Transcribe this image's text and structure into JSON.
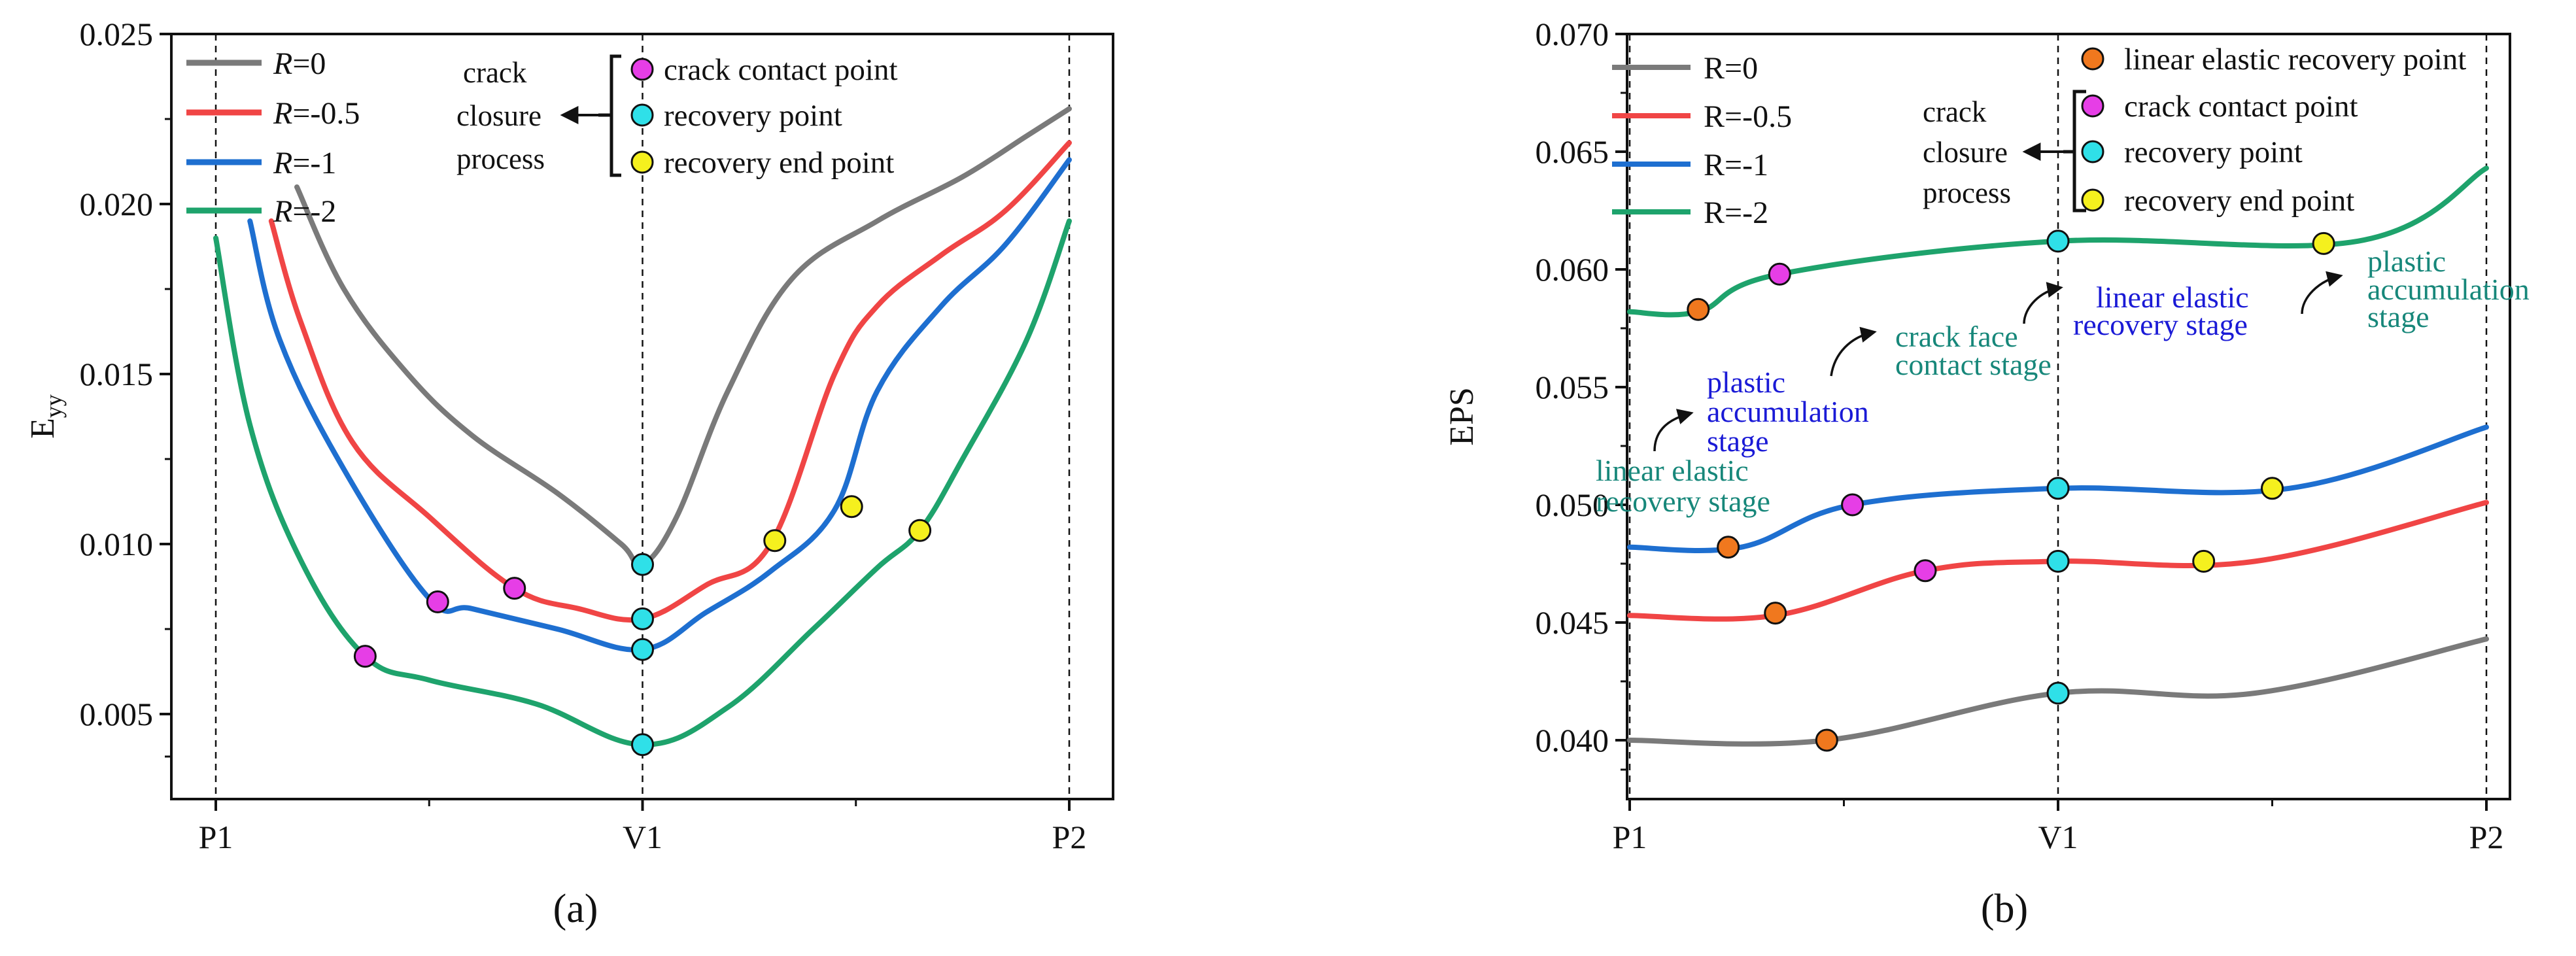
{
  "colors": {
    "R0": "#7a7a7a",
    "R-0.5": "#f04545",
    "R-1": "#1e6fd0",
    "R-2": "#1ea36c",
    "contact": "#e63ee6",
    "recovery": "#2fe0e8",
    "end": "#f5f01e",
    "linear": "#f0781e",
    "stage_blue": "#1a1ad6",
    "stage_teal": "#17877a"
  },
  "chart_data": [
    {
      "type": "line",
      "panel_label": "(a)",
      "ylabel": "E",
      "ylabel_sub": "yy",
      "x_ticks": [
        "P1",
        "V1",
        "P2"
      ],
      "xlim": [
        0,
        2
      ],
      "ylim": [
        0.0025,
        0.025
      ],
      "y_ticks": [
        0.005,
        0.01,
        0.015,
        0.02,
        0.025
      ],
      "y_tick_labels": [
        "0.005",
        "0.010",
        "0.015",
        "0.020",
        "0.025"
      ],
      "legend": [
        {
          "prefix": "R",
          "suffix": "=0",
          "key": "R0"
        },
        {
          "prefix": "R",
          "suffix": "=-0.5",
          "key": "R-0.5"
        },
        {
          "prefix": "R",
          "suffix": "=-1",
          "key": "R-1"
        },
        {
          "prefix": "R",
          "suffix": "=-2",
          "key": "R-2"
        }
      ],
      "annotation": {
        "process_lines": [
          "crack",
          "closure",
          "process"
        ],
        "markers": [
          {
            "label": "crack contact point",
            "kind": "contact"
          },
          {
            "label": "recovery point",
            "kind": "recovery"
          },
          {
            "label": "recovery end point",
            "kind": "end"
          }
        ]
      },
      "series": [
        {
          "name": "R=0",
          "key": "R0",
          "x": [
            0.19,
            0.3,
            0.45,
            0.6,
            0.8,
            0.95,
            1.0,
            1.08,
            1.2,
            1.35,
            1.55,
            1.75,
            1.9,
            2.0
          ],
          "y": [
            0.0205,
            0.0175,
            0.015,
            0.0132,
            0.0115,
            0.01,
            0.0094,
            0.0108,
            0.0145,
            0.0178,
            0.0195,
            0.0208,
            0.022,
            0.0228
          ]
        },
        {
          "name": "R=-0.5",
          "key": "R-0.5",
          "x": [
            0.13,
            0.2,
            0.32,
            0.5,
            0.7,
            0.85,
            1.0,
            1.15,
            1.3,
            1.45,
            1.55,
            1.7,
            1.85,
            2.0
          ],
          "y": [
            0.0195,
            0.0165,
            0.013,
            0.0108,
            0.0087,
            0.0081,
            0.0078,
            0.0088,
            0.01,
            0.015,
            0.017,
            0.0185,
            0.0198,
            0.0218
          ]
        },
        {
          "name": "R=-1",
          "key": "R-1",
          "x": [
            0.08,
            0.15,
            0.3,
            0.5,
            0.6,
            0.8,
            1.0,
            1.15,
            1.3,
            1.45,
            1.55,
            1.7,
            1.85,
            2.0
          ],
          "y": [
            0.0195,
            0.016,
            0.0122,
            0.0084,
            0.0081,
            0.0075,
            0.0069,
            0.008,
            0.0092,
            0.011,
            0.0145,
            0.017,
            0.0188,
            0.0213
          ]
        },
        {
          "name": "R=-2",
          "key": "R-2",
          "x": [
            0.0,
            0.08,
            0.2,
            0.35,
            0.5,
            0.75,
            1.0,
            1.2,
            1.4,
            1.55,
            1.65,
            1.75,
            1.9,
            2.0
          ],
          "y": [
            0.019,
            0.0135,
            0.0095,
            0.0067,
            0.006,
            0.0053,
            0.0041,
            0.0052,
            0.0075,
            0.0093,
            0.0104,
            0.0125,
            0.016,
            0.0195
          ]
        }
      ],
      "points": [
        {
          "series": "R0",
          "kind": "recovery",
          "x": 1.0,
          "y": 0.0094
        },
        {
          "series": "R-0.5",
          "kind": "contact",
          "x": 0.7,
          "y": 0.0087
        },
        {
          "series": "R-0.5",
          "kind": "recovery",
          "x": 1.0,
          "y": 0.0078
        },
        {
          "series": "R-0.5",
          "kind": "end",
          "x": 1.31,
          "y": 0.0101
        },
        {
          "series": "R-1",
          "kind": "contact",
          "x": 0.52,
          "y": 0.0083
        },
        {
          "series": "R-1",
          "kind": "recovery",
          "x": 1.0,
          "y": 0.0069
        },
        {
          "series": "R-1",
          "kind": "end",
          "x": 1.49,
          "y": 0.0111
        },
        {
          "series": "R-2",
          "kind": "contact",
          "x": 0.35,
          "y": 0.0067
        },
        {
          "series": "R-2",
          "kind": "recovery",
          "x": 1.0,
          "y": 0.0041
        },
        {
          "series": "R-2",
          "kind": "end",
          "x": 1.65,
          "y": 0.0104
        }
      ]
    },
    {
      "type": "line",
      "panel_label": "(b)",
      "ylabel": "EPS",
      "x_ticks": [
        "P1",
        "V1",
        "P2"
      ],
      "xlim": [
        0,
        2
      ],
      "ylim": [
        0.0375,
        0.07
      ],
      "y_ticks": [
        0.04,
        0.045,
        0.05,
        0.055,
        0.06,
        0.065,
        0.07
      ],
      "y_tick_labels": [
        "0.040",
        "0.045",
        "0.050",
        "0.055",
        "0.060",
        "0.065",
        "0.070"
      ],
      "legend": [
        {
          "label": "R=0",
          "key": "R0"
        },
        {
          "label": "R=-0.5",
          "key": "R-0.5"
        },
        {
          "label": "R=-1",
          "key": "R-1"
        },
        {
          "label": "R=-2",
          "key": "R-2"
        }
      ],
      "annotation": {
        "process_lines": [
          "crack",
          "closure",
          "process"
        ],
        "top_marker": {
          "label": "linear elastic recovery point",
          "kind": "linear"
        },
        "markers": [
          {
            "label": "crack contact point",
            "kind": "contact"
          },
          {
            "label": "recovery point",
            "kind": "recovery"
          },
          {
            "label": "recovery end point",
            "kind": "end"
          }
        ]
      },
      "stages": [
        {
          "lines": [
            "linear elastic",
            "recovery stage"
          ],
          "color": "teal"
        },
        {
          "lines": [
            "plastic",
            "accumulation",
            "stage"
          ],
          "color": "blue"
        },
        {
          "lines": [
            "crack face",
            "contact stage"
          ],
          "color": "teal"
        },
        {
          "lines": [
            "linear elastic",
            "recovery stage"
          ],
          "color": "blue"
        },
        {
          "lines": [
            "plastic",
            "accumulation",
            "stage"
          ],
          "color": "teal"
        }
      ],
      "series": [
        {
          "name": "R=0",
          "key": "R0",
          "x": [
            0.0,
            0.46,
            1.0,
            1.46,
            2.0
          ],
          "y": [
            0.04,
            0.04,
            0.042,
            0.042,
            0.0443
          ]
        },
        {
          "name": "R=-0.5",
          "key": "R-0.5",
          "x": [
            0.0,
            0.34,
            0.69,
            1.0,
            1.46,
            2.0
          ],
          "y": [
            0.0453,
            0.0453,
            0.0472,
            0.0476,
            0.0476,
            0.0501
          ]
        },
        {
          "name": "R=-1",
          "key": "R-1",
          "x": [
            0.0,
            0.26,
            0.52,
            1.0,
            1.54,
            2.0
          ],
          "y": [
            0.0482,
            0.0482,
            0.05,
            0.0507,
            0.0507,
            0.0533
          ]
        },
        {
          "name": "R=-2",
          "key": "R-2",
          "x": [
            0.0,
            0.16,
            0.35,
            1.0,
            1.7,
            2.0
          ],
          "y": [
            0.0582,
            0.0582,
            0.0598,
            0.0612,
            0.0612,
            0.0643
          ]
        }
      ],
      "points": [
        {
          "series": "R0",
          "kind": "linear",
          "x": 0.46,
          "y": 0.04
        },
        {
          "series": "R0",
          "kind": "recovery",
          "x": 1.0,
          "y": 0.042
        },
        {
          "series": "R-0.5",
          "kind": "linear",
          "x": 0.34,
          "y": 0.0454
        },
        {
          "series": "R-0.5",
          "kind": "contact",
          "x": 0.69,
          "y": 0.0472
        },
        {
          "series": "R-0.5",
          "kind": "recovery",
          "x": 1.0,
          "y": 0.0476
        },
        {
          "series": "R-0.5",
          "kind": "end",
          "x": 1.34,
          "y": 0.0476
        },
        {
          "series": "R-1",
          "kind": "linear",
          "x": 0.23,
          "y": 0.0482
        },
        {
          "series": "R-1",
          "kind": "contact",
          "x": 0.52,
          "y": 0.05
        },
        {
          "series": "R-1",
          "kind": "recovery",
          "x": 1.0,
          "y": 0.0507
        },
        {
          "series": "R-1",
          "kind": "end",
          "x": 1.5,
          "y": 0.0507
        },
        {
          "series": "R-2",
          "kind": "linear",
          "x": 0.16,
          "y": 0.0583
        },
        {
          "series": "R-2",
          "kind": "contact",
          "x": 0.35,
          "y": 0.0598
        },
        {
          "series": "R-2",
          "kind": "recovery",
          "x": 1.0,
          "y": 0.0612
        },
        {
          "series": "R-2",
          "kind": "end",
          "x": 1.62,
          "y": 0.0611
        }
      ]
    }
  ]
}
